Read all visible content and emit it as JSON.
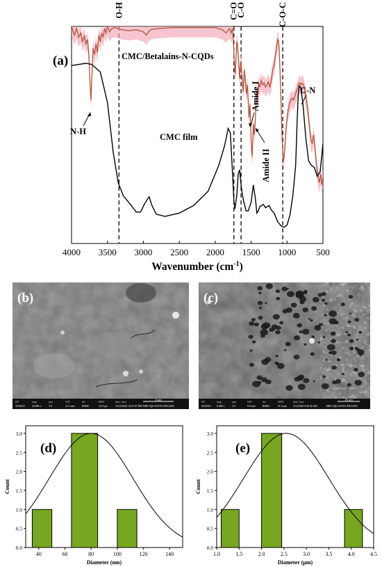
{
  "panel_a": {
    "tag": "(a)",
    "chart_data": {
      "type": "line",
      "xlabel": "Wavenumber (cm",
      "xlabel_sup": "-1",
      "xlabel_close": ")",
      "xlim": [
        4000,
        500
      ],
      "x_ticks": [
        "4000",
        "3500",
        "3000",
        "2500",
        "2000",
        "1500",
        "1000",
        "500"
      ],
      "series": [
        {
          "name": "CMC/Betalains-N-CQDs",
          "color": "#b0563a"
        },
        {
          "name": "CMC film",
          "color": "#000000"
        }
      ],
      "band_lines": [
        {
          "label": "O-H",
          "x": 3340
        },
        {
          "label": "C=O",
          "x": 1740
        },
        {
          "label": "C-O",
          "x": 1640
        },
        {
          "label": "C-O-C",
          "x": 1060
        }
      ],
      "annotations": [
        "N-H",
        "Amide I",
        "Amide II",
        "C-N"
      ],
      "curve_cmc": [
        [
          4000,
          0.82
        ],
        [
          3800,
          0.83
        ],
        [
          3720,
          0.825
        ],
        [
          3600,
          0.79
        ],
        [
          3500,
          0.65
        ],
        [
          3420,
          0.42
        ],
        [
          3350,
          0.28
        ],
        [
          3280,
          0.22
        ],
        [
          3180,
          0.18
        ],
        [
          3100,
          0.145
        ],
        [
          3040,
          0.145
        ],
        [
          2980,
          0.185
        ],
        [
          2920,
          0.215
        ],
        [
          2880,
          0.175
        ],
        [
          2820,
          0.135
        ],
        [
          2700,
          0.125
        ],
        [
          2500,
          0.14
        ],
        [
          2300,
          0.175
        ],
        [
          2100,
          0.24
        ],
        [
          1950,
          0.36
        ],
        [
          1870,
          0.45
        ],
        [
          1820,
          0.53
        ],
        [
          1790,
          0.51
        ],
        [
          1760,
          0.33
        ],
        [
          1740,
          0.2
        ],
        [
          1725,
          0.16
        ],
        [
          1700,
          0.22
        ],
        [
          1680,
          0.32
        ],
        [
          1660,
          0.34
        ],
        [
          1640,
          0.27
        ],
        [
          1620,
          0.22
        ],
        [
          1600,
          0.19
        ],
        [
          1570,
          0.15
        ],
        [
          1540,
          0.15
        ],
        [
          1500,
          0.19
        ],
        [
          1470,
          0.27
        ],
        [
          1440,
          0.205
        ],
        [
          1420,
          0.14
        ],
        [
          1400,
          0.15
        ],
        [
          1380,
          0.17
        ],
        [
          1330,
          0.18
        ],
        [
          1300,
          0.165
        ],
        [
          1250,
          0.175
        ],
        [
          1220,
          0.155
        ],
        [
          1180,
          0.14
        ],
        [
          1130,
          0.1
        ],
        [
          1080,
          0.08
        ],
        [
          1040,
          0.075
        ],
        [
          1000,
          0.085
        ],
        [
          960,
          0.13
        ],
        [
          920,
          0.22
        ],
        [
          880,
          0.36
        ],
        [
          860,
          0.56
        ],
        [
          845,
          0.68
        ],
        [
          830,
          0.725
        ],
        [
          810,
          0.72
        ],
        [
          780,
          0.65
        ],
        [
          740,
          0.49
        ],
        [
          700,
          0.38
        ],
        [
          660,
          0.36
        ],
        [
          620,
          0.35
        ],
        [
          580,
          0.31
        ],
        [
          540,
          0.33
        ],
        [
          500,
          0.46
        ]
      ],
      "curve_composite": [
        [
          4000,
          1.0
        ],
        [
          3960,
          0.96
        ],
        [
          3930,
          0.99
        ],
        [
          3900,
          0.95
        ],
        [
          3870,
          0.97
        ],
        [
          3850,
          0.93
        ],
        [
          3820,
          0.955
        ],
        [
          3800,
          0.92
        ],
        [
          3780,
          0.94
        ],
        [
          3760,
          0.88
        ],
        [
          3740,
          0.72
        ],
        [
          3730,
          0.66
        ],
        [
          3715,
          0.78
        ],
        [
          3700,
          0.9
        ],
        [
          3680,
          0.87
        ],
        [
          3660,
          0.92
        ],
        [
          3640,
          0.88
        ],
        [
          3620,
          0.96
        ],
        [
          3600,
          0.93
        ],
        [
          3580,
          0.97
        ],
        [
          3560,
          0.95
        ],
        [
          3540,
          0.99
        ],
        [
          3520,
          0.97
        ],
        [
          3500,
          1.0
        ],
        [
          3470,
          0.975
        ],
        [
          3440,
          0.99
        ],
        [
          3400,
          0.995
        ],
        [
          3350,
          0.99
        ],
        [
          3300,
          0.985
        ],
        [
          3200,
          0.98
        ],
        [
          3100,
          0.985
        ],
        [
          3000,
          0.975
        ],
        [
          2960,
          0.96
        ],
        [
          2930,
          0.975
        ],
        [
          2900,
          0.985
        ],
        [
          2800,
          0.99
        ],
        [
          2600,
          0.995
        ],
        [
          2400,
          0.995
        ],
        [
          2200,
          0.995
        ],
        [
          2000,
          0.995
        ],
        [
          1900,
          0.985
        ],
        [
          1850,
          0.97
        ],
        [
          1800,
          0.99
        ],
        [
          1780,
          0.97
        ],
        [
          1760,
          0.99
        ],
        [
          1750,
          0.95
        ],
        [
          1740,
          0.88
        ],
        [
          1730,
          0.82
        ],
        [
          1720,
          0.78
        ],
        [
          1710,
          0.86
        ],
        [
          1700,
          0.93
        ],
        [
          1690,
          0.92
        ],
        [
          1675,
          0.84
        ],
        [
          1660,
          0.76
        ],
        [
          1650,
          0.82
        ],
        [
          1640,
          0.84
        ],
        [
          1625,
          0.76
        ],
        [
          1610,
          0.7
        ],
        [
          1595,
          0.8
        ],
        [
          1580,
          0.75
        ],
        [
          1565,
          0.69
        ],
        [
          1550,
          0.73
        ],
        [
          1530,
          0.58
        ],
        [
          1515,
          0.64
        ],
        [
          1500,
          0.47
        ],
        [
          1485,
          0.4
        ],
        [
          1470,
          0.55
        ],
        [
          1455,
          0.5
        ],
        [
          1440,
          0.58
        ],
        [
          1425,
          0.7
        ],
        [
          1410,
          0.68
        ],
        [
          1395,
          0.74
        ],
        [
          1380,
          0.72
        ],
        [
          1360,
          0.75
        ],
        [
          1340,
          0.73
        ],
        [
          1320,
          0.74
        ],
        [
          1300,
          0.72
        ],
        [
          1280,
          0.73
        ],
        [
          1260,
          0.745
        ],
        [
          1240,
          0.72
        ],
        [
          1220,
          0.75
        ],
        [
          1200,
          0.8
        ],
        [
          1180,
          0.82
        ],
        [
          1160,
          0.87
        ],
        [
          1145,
          0.91
        ],
        [
          1130,
          0.94
        ],
        [
          1120,
          0.935
        ],
        [
          1110,
          0.9
        ],
        [
          1100,
          0.82
        ],
        [
          1090,
          0.72
        ],
        [
          1080,
          0.6
        ],
        [
          1070,
          0.5
        ],
        [
          1060,
          0.42
        ],
        [
          1050,
          0.38
        ],
        [
          1040,
          0.4
        ],
        [
          1025,
          0.47
        ],
        [
          1010,
          0.55
        ],
        [
          990,
          0.6
        ],
        [
          970,
          0.64
        ],
        [
          950,
          0.66
        ],
        [
          930,
          0.67
        ],
        [
          910,
          0.66
        ],
        [
          890,
          0.68
        ],
        [
          870,
          0.7
        ],
        [
          850,
          0.72
        ],
        [
          830,
          0.74
        ],
        [
          810,
          0.73
        ],
        [
          790,
          0.74
        ],
        [
          770,
          0.73
        ],
        [
          750,
          0.7
        ],
        [
          730,
          0.66
        ],
        [
          710,
          0.61
        ],
        [
          690,
          0.55
        ],
        [
          670,
          0.48
        ],
        [
          650,
          0.46
        ],
        [
          630,
          0.5
        ],
        [
          610,
          0.44
        ],
        [
          590,
          0.36
        ],
        [
          570,
          0.31
        ],
        [
          550,
          0.28
        ],
        [
          530,
          0.32
        ],
        [
          515,
          0.27
        ],
        [
          500,
          0.3
        ]
      ]
    }
  },
  "panel_b": {
    "tag": "(b)",
    "scale_bar": "4 μm",
    "info_headers": [
      "HV",
      "mag",
      "spot",
      "WD",
      "det",
      "HFW",
      "date / time"
    ],
    "info_values": [
      "30.00 kV",
      "20 000 x",
      "3.0",
      "12.3 mm",
      "BSED",
      "14.9 μm",
      "12/25/2024 12:37:07 PM"
    ],
    "instrument": "NRC/QUANTA FEG250"
  },
  "panel_c": {
    "tag": "(c)",
    "scale_bar": "10 μm",
    "info_headers": [
      "HV",
      "mag",
      "spot",
      "WD",
      "det",
      "HFW",
      "date / time"
    ],
    "info_values": [
      "30.00 kV",
      "8 000 x",
      "5.0",
      "9.8 mm",
      "BSED",
      "51.8 μm",
      "3/12/2023 9:36:45 AM"
    ],
    "instrument": "NRC/QUANTA FEG250"
  },
  "panel_d": {
    "tag": "(d)",
    "chart_data": {
      "type": "bar",
      "xlabel": "Diameter (nm)",
      "ylabel": "Count",
      "xlim": [
        30,
        150
      ],
      "ylim": [
        0,
        3.2
      ],
      "x_ticks": [
        "40",
        "60",
        "80",
        "100",
        "120",
        "140"
      ],
      "y_ticks": [
        "0.0",
        "0.5",
        "1.0",
        "1.5",
        "2.0",
        "2.5",
        "3.0"
      ],
      "bar_color": "#77a620",
      "bars": [
        {
          "x0": 35,
          "x1": 50,
          "value": 1
        },
        {
          "x0": 65,
          "x1": 85,
          "value": 3
        },
        {
          "x0": 100,
          "x1": 115,
          "value": 1
        }
      ],
      "fit": {
        "type": "normal",
        "mean": 80,
        "sd": 32,
        "peak": 3.0
      }
    }
  },
  "panel_e": {
    "tag": "(e)",
    "chart_data": {
      "type": "bar",
      "xlabel": "Diameter (μm)",
      "ylabel": "Count",
      "xlim": [
        1.0,
        4.5
      ],
      "ylim": [
        0,
        3.2
      ],
      "x_ticks": [
        "1.0",
        "1.5",
        "2.0",
        "2.5",
        "3.0",
        "3.5",
        "4.0",
        "4.5"
      ],
      "y_ticks": [
        "0.0",
        "0.5",
        "1.0",
        "1.5",
        "2.0",
        "2.5",
        "3.0"
      ],
      "bar_color": "#77a620",
      "bars": [
        {
          "x0": 1.1,
          "x1": 1.5,
          "value": 1
        },
        {
          "x0": 2.0,
          "x1": 2.45,
          "value": 3
        },
        {
          "x0": 3.85,
          "x1": 4.25,
          "value": 1
        }
      ],
      "fit": {
        "type": "normal",
        "mean": 2.55,
        "sd": 0.95,
        "peak": 3.0
      }
    }
  }
}
